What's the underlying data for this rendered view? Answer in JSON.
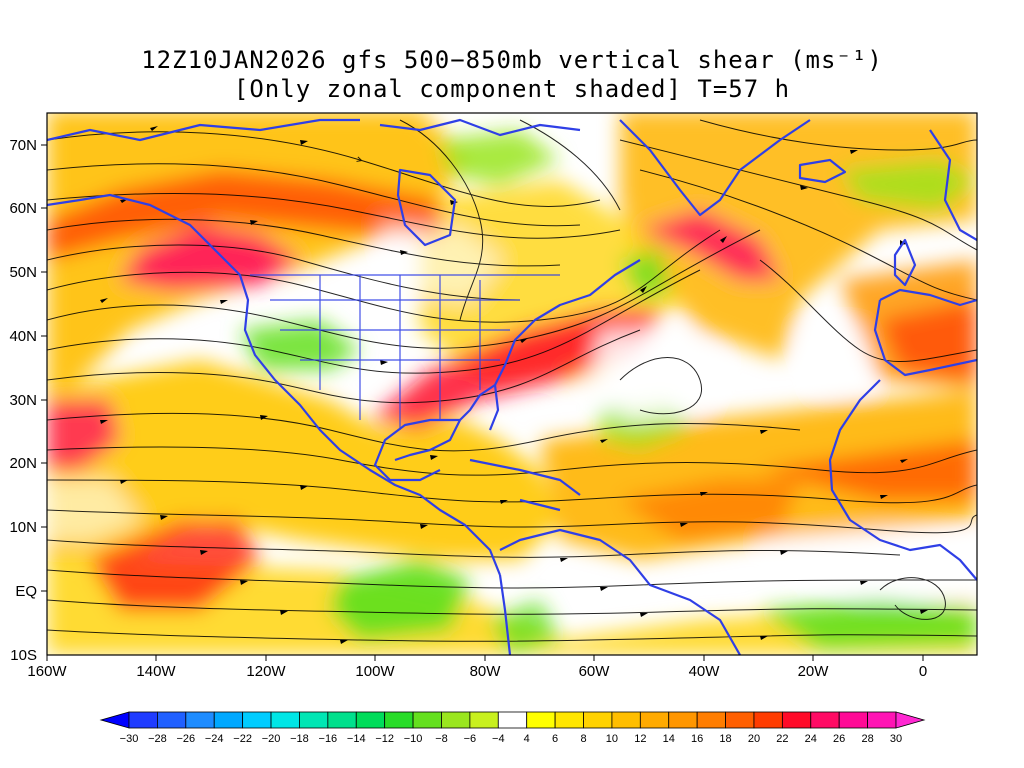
{
  "title": {
    "line1": "12Z10JAN2026 gfs 500−850mb vertical shear (ms⁻¹)",
    "line2": "[Only zonal component shaded] T=57 h"
  },
  "map": {
    "lon_labels": [
      "160W",
      "140W",
      "120W",
      "100W",
      "80W",
      "60W",
      "40W",
      "20W",
      "0"
    ],
    "lat_labels": [
      "70N",
      "60N",
      "50N",
      "40N",
      "30N",
      "20N",
      "10N",
      "EQ",
      "10S"
    ],
    "lon_range": [
      -160,
      10
    ],
    "lat_range": [
      -10,
      75
    ],
    "coastline_color": "#2f3fe6",
    "streamline_color": "#000000"
  },
  "colorbar": {
    "labels": [
      "−30",
      "−28",
      "−26",
      "−24",
      "−22",
      "−20",
      "−18",
      "−16",
      "−14",
      "−12",
      "−10",
      "−8",
      "−6",
      "−4",
      "4",
      "6",
      "8",
      "10",
      "12",
      "14",
      "16",
      "18",
      "20",
      "22",
      "24",
      "26",
      "28",
      "30"
    ],
    "colors": [
      "#0000ff",
      "#1f3cff",
      "#2060ff",
      "#1e8cff",
      "#00a8ff",
      "#00ccff",
      "#00e6e6",
      "#00e6b4",
      "#00e08c",
      "#00dc5a",
      "#28dc28",
      "#64e01e",
      "#9ae61e",
      "#c8f01e",
      "#ffffff",
      "#ffff00",
      "#ffe600",
      "#ffd200",
      "#ffbe00",
      "#ffaa00",
      "#ff9600",
      "#ff7d00",
      "#ff5f00",
      "#ff3c00",
      "#ff0a28",
      "#ff0a64",
      "#ff0a96",
      "#ff14b4",
      "#ff28d2"
    ]
  }
}
